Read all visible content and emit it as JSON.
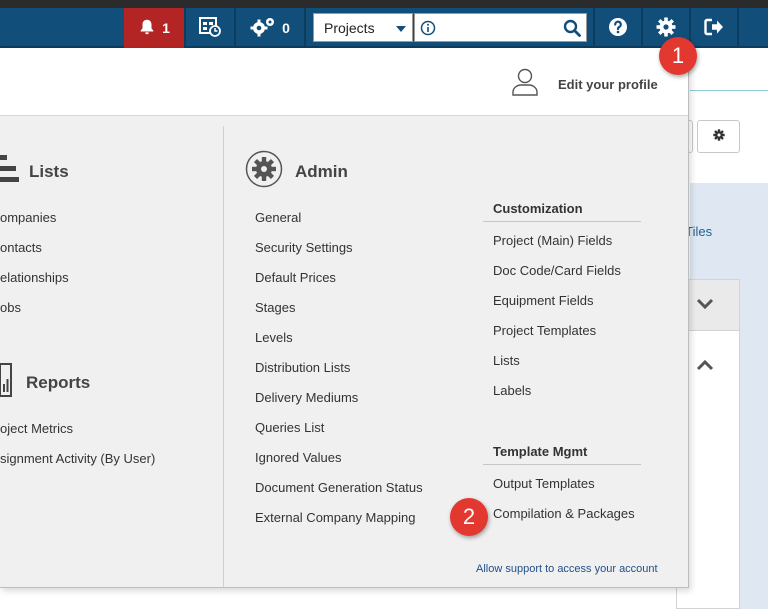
{
  "navbar": {
    "alerts_count": "1",
    "gears_count": "0",
    "project_select": "Projects",
    "search_value": ""
  },
  "profile": {
    "edit_label": "Edit your profile"
  },
  "lists": {
    "title": "Lists",
    "items": [
      "ompanies",
      "ontacts",
      "elationships",
      "obs"
    ]
  },
  "reports": {
    "title": "Reports",
    "items": [
      "oject Metrics",
      "signment Activity (By User)"
    ]
  },
  "admin": {
    "title": "Admin",
    "items": [
      "General",
      "Security Settings",
      "Default Prices",
      "Stages",
      "Levels",
      "Distribution Lists",
      "Delivery Mediums",
      "Queries List",
      "Ignored Values",
      "Document Generation Status",
      "External Company Mapping"
    ]
  },
  "customization": {
    "header": "Customization",
    "items": [
      "Project (Main) Fields",
      "Doc Code/Card Fields",
      "Equipment Fields",
      "Project Templates",
      "Lists",
      "Labels"
    ]
  },
  "template_mgmt": {
    "header": "Template Mgmt",
    "items": [
      "Output Templates",
      "Compilation & Packages"
    ]
  },
  "support_link": "Allow support to access your account",
  "background": {
    "tiles_text": "ll Tiles"
  },
  "callouts": [
    "1",
    "2"
  ],
  "colors": {
    "navbar": "#124e7a",
    "alert": "#b32424",
    "callout": "#e2382f",
    "link": "#1f4f8b"
  }
}
